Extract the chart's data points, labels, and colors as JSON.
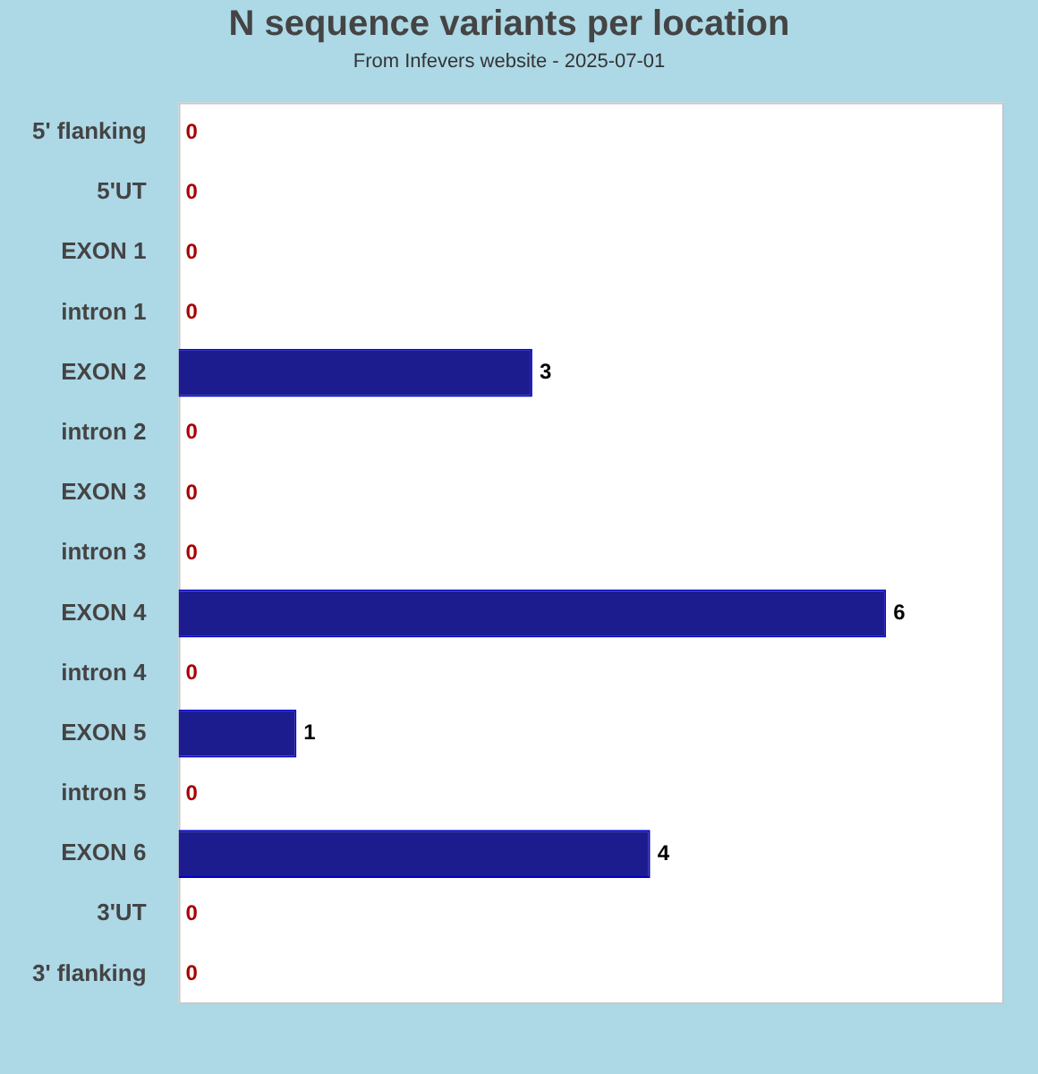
{
  "chart_data": {
    "type": "bar",
    "orientation": "horizontal",
    "title": "N sequence variants per location",
    "subtitle": "From Infevers website - 2025-07-01",
    "categories": [
      "5' flanking",
      "5'UT",
      "EXON 1",
      "intron 1",
      "EXON 2",
      "intron 2",
      "EXON 3",
      "intron 3",
      "EXON 4",
      "intron 4",
      "EXON 5",
      "intron 5",
      "EXON 6",
      "3'UT",
      "3' flanking"
    ],
    "values": [
      0,
      0,
      0,
      0,
      3,
      0,
      0,
      0,
      6,
      0,
      1,
      0,
      4,
      0,
      0
    ],
    "color": "#1c1c8e",
    "xlim": [
      0,
      7
    ],
    "data_labels": true,
    "tick_labels": "y",
    "legend": false
  }
}
